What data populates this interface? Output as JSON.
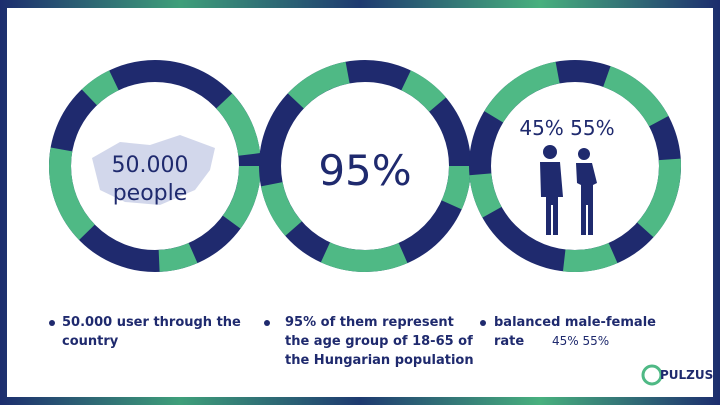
{
  "circles": [
    {
      "lines": [
        "50.000",
        "people"
      ]
    },
    {
      "lines": [
        "95%"
      ]
    },
    {
      "lines": [
        "45% 55%"
      ]
    }
  ],
  "bullets": [
    {
      "text": "50.000 user through the country"
    },
    {
      "text": "95% of them represent the age group of 18-65 of the Hungarian population"
    },
    {
      "text": "balanced male-female rate",
      "extra": "45% 55%"
    }
  ],
  "logo": "PULZUS"
}
